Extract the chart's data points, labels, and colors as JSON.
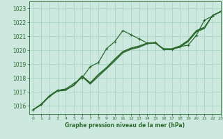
{
  "xlabel": "Graphe pression niveau de la mer (hPa)",
  "background_color": "#cce8df",
  "grid_color": "#a8d4c8",
  "line_color": "#2d6a2d",
  "text_color": "#2d6a2d",
  "ylim": [
    1015.4,
    1023.5
  ],
  "xlim": [
    -0.5,
    23
  ],
  "yticks": [
    1016,
    1017,
    1018,
    1019,
    1020,
    1021,
    1022,
    1023
  ],
  "xticks": [
    0,
    1,
    2,
    3,
    4,
    5,
    6,
    7,
    8,
    9,
    10,
    11,
    12,
    13,
    14,
    15,
    16,
    17,
    18,
    19,
    20,
    21,
    22,
    23
  ],
  "series": [
    {
      "y": [
        1015.7,
        1016.1,
        1016.7,
        1017.1,
        1017.2,
        1017.6,
        1018.0,
        1018.8,
        1019.1,
        1020.1,
        1020.6,
        1021.4,
        1021.1,
        1020.8,
        1020.5,
        1020.55,
        1020.05,
        1020.05,
        1020.25,
        1020.35,
        1021.05,
        1022.15,
        1022.45,
        1022.8
      ],
      "marker": true,
      "lw": 0.9
    },
    {
      "y": [
        1015.7,
        1016.1,
        1016.7,
        1017.1,
        1017.15,
        1017.45,
        1018.1,
        1017.55,
        1018.1,
        1018.65,
        1019.2,
        1019.8,
        1020.05,
        1020.2,
        1020.45,
        1020.5,
        1020.05,
        1020.05,
        1020.2,
        1020.6,
        1021.3,
        1021.55,
        1022.5,
        1022.75
      ],
      "marker": false,
      "lw": 0.9
    },
    {
      "y": [
        1015.7,
        1016.1,
        1016.7,
        1017.1,
        1017.15,
        1017.45,
        1018.1,
        1017.6,
        1018.2,
        1018.7,
        1019.3,
        1019.85,
        1020.1,
        1020.25,
        1020.5,
        1020.5,
        1020.05,
        1020.05,
        1020.25,
        1020.65,
        1021.35,
        1021.6,
        1022.5,
        1022.75
      ],
      "marker": false,
      "lw": 0.9
    },
    {
      "y": [
        1015.7,
        1016.05,
        1016.65,
        1017.05,
        1017.1,
        1017.5,
        1018.15,
        1017.65,
        1018.25,
        1018.75,
        1019.35,
        1019.9,
        1020.15,
        1020.3,
        1020.5,
        1020.5,
        1020.1,
        1020.1,
        1020.3,
        1020.7,
        1021.4,
        1021.65,
        1022.5,
        1022.75
      ],
      "marker": false,
      "lw": 0.9
    }
  ]
}
